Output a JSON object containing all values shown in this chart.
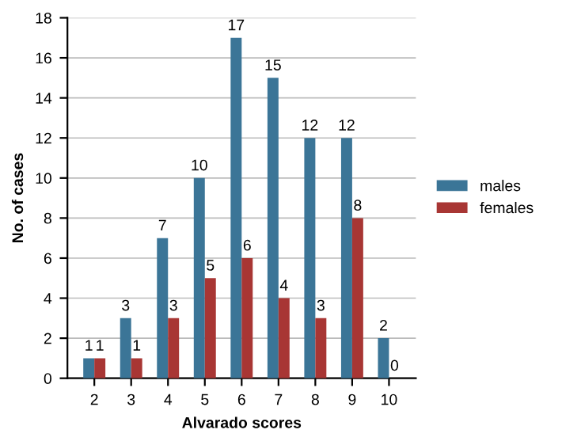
{
  "chart_data": {
    "type": "bar",
    "xlabel": "Alvarado scores",
    "ylabel": "No. of cases",
    "categories": [
      "2",
      "3",
      "4",
      "5",
      "6",
      "7",
      "8",
      "9",
      "10"
    ],
    "series": [
      {
        "name": "males",
        "color": "#3b7597",
        "values": [
          1,
          3,
          7,
          10,
          17,
          15,
          12,
          12,
          2
        ]
      },
      {
        "name": "females",
        "color": "#a83634",
        "values": [
          1,
          1,
          3,
          5,
          6,
          4,
          3,
          8,
          0
        ]
      }
    ],
    "ylim": [
      0,
      18
    ],
    "yticks": [
      0,
      2,
      4,
      6,
      8,
      10,
      12,
      14,
      16,
      18
    ],
    "grid": "y",
    "legend": "right",
    "data_labels": true
  }
}
